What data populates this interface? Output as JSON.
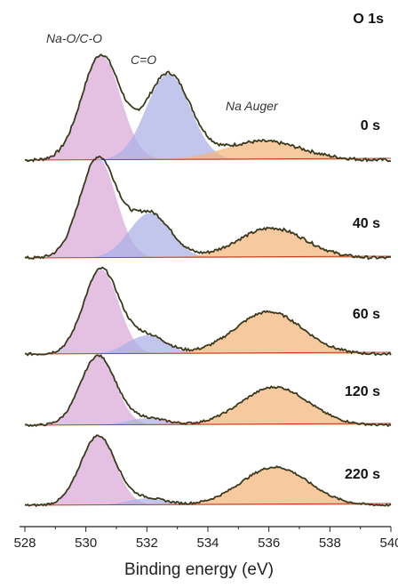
{
  "chart_data": {
    "type": "line",
    "title": "O 1s",
    "xlabel": "Binding energy (eV)",
    "xlim": [
      528,
      540
    ],
    "xticks": [
      528,
      530,
      532,
      534,
      536,
      538,
      540
    ],
    "x_reversed": false,
    "colors": {
      "data_line": "#3a3a1c",
      "component_1": "#d9a8d8",
      "component_2": "#aab0e6",
      "component_3": "#f4b47a",
      "baseline": "#c0392b"
    },
    "annotations": [
      "Na-O/C-O",
      "C=O",
      "Na Auger"
    ],
    "component_names": [
      "Na-O/C-O",
      "C=O",
      "Na Auger"
    ],
    "series": [
      {
        "name": "0 s",
        "components": [
          {
            "center": 530.5,
            "height": 1.0,
            "fwhm": 1.5
          },
          {
            "center": 532.7,
            "height": 0.82,
            "fwhm": 1.7
          },
          {
            "center": 535.8,
            "height": 0.18,
            "fwhm": 3.0
          }
        ],
        "baseline_slope": 0.0
      },
      {
        "name": "40 s",
        "components": [
          {
            "center": 530.4,
            "height": 1.0,
            "fwhm": 1.4
          },
          {
            "center": 532.1,
            "height": 0.45,
            "fwhm": 1.6
          },
          {
            "center": 536.1,
            "height": 0.3,
            "fwhm": 2.6
          }
        ],
        "baseline_slope": 0.0
      },
      {
        "name": "60 s",
        "components": [
          {
            "center": 530.5,
            "height": 1.0,
            "fwhm": 1.35
          },
          {
            "center": 532.0,
            "height": 0.22,
            "fwhm": 1.5
          },
          {
            "center": 536.0,
            "height": 0.5,
            "fwhm": 2.6
          }
        ],
        "baseline_slope": 0.0
      },
      {
        "name": "120 s",
        "components": [
          {
            "center": 530.4,
            "height": 1.0,
            "fwhm": 1.35
          },
          {
            "center": 532.0,
            "height": 0.1,
            "fwhm": 1.5
          },
          {
            "center": 536.2,
            "height": 0.55,
            "fwhm": 2.6
          }
        ],
        "baseline_slope": 0.0
      },
      {
        "name": "220 s",
        "components": [
          {
            "center": 530.4,
            "height": 1.0,
            "fwhm": 1.35
          },
          {
            "center": 532.0,
            "height": 0.1,
            "fwhm": 1.5
          },
          {
            "center": 536.2,
            "height": 0.55,
            "fwhm": 2.6
          }
        ],
        "baseline_slope": 0.0
      }
    ]
  }
}
